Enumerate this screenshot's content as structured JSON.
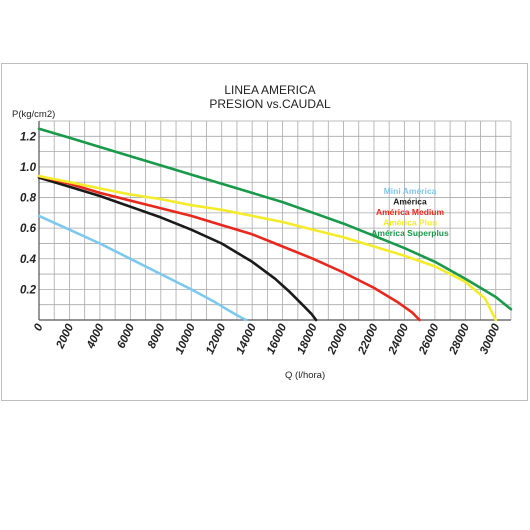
{
  "chart_data": {
    "type": "line",
    "title": "LINEA AMERICA",
    "subtitle": "PRESION vs.CAUDAL",
    "ylabel": "P(kg/cm2)",
    "xlabel": "Q (l/hora)",
    "xlim": [
      0,
      31000
    ],
    "ylim": [
      0,
      1.3
    ],
    "x_ticks": [
      "0",
      "2000",
      "4000",
      "6000",
      "8000",
      "10000",
      "12000",
      "14000",
      "16000",
      "18000",
      "20000",
      "22000",
      "24000",
      "26000",
      "28000",
      "30000"
    ],
    "y_ticks": [
      "0.2",
      "0.4",
      "0.6",
      "0.8",
      "1.0",
      "1.2"
    ],
    "grid": true,
    "legend_position": "right",
    "series": [
      {
        "name": "Mini América",
        "color": "#7cc8ee",
        "x": [
          0,
          2000,
          4000,
          6000,
          8000,
          10000,
          11500,
          12500,
          13200,
          13600
        ],
        "y": [
          0.68,
          0.59,
          0.5,
          0.4,
          0.3,
          0.2,
          0.12,
          0.06,
          0.02,
          0.0
        ]
      },
      {
        "name": "América",
        "color": "#1a1a1a",
        "x": [
          0,
          2000,
          4000,
          6000,
          8000,
          10000,
          12000,
          14000,
          15500,
          16500,
          17400,
          17900,
          18200
        ],
        "y": [
          0.93,
          0.87,
          0.81,
          0.74,
          0.67,
          0.59,
          0.5,
          0.38,
          0.27,
          0.18,
          0.09,
          0.04,
          0.0
        ]
      },
      {
        "name": "América Medium",
        "color": "#e8281c",
        "x": [
          0,
          2000,
          4000,
          6000,
          8000,
          10000,
          12000,
          14000,
          16000,
          18000,
          20000,
          22000,
          23500,
          24500,
          25000
        ],
        "y": [
          0.94,
          0.89,
          0.83,
          0.78,
          0.73,
          0.68,
          0.62,
          0.56,
          0.48,
          0.4,
          0.31,
          0.21,
          0.12,
          0.05,
          0.0
        ]
      },
      {
        "name": "América Plus",
        "color": "#f4ec2a",
        "x": [
          0,
          2000,
          4000,
          6000,
          8000,
          10000,
          12000,
          14000,
          16000,
          18000,
          20000,
          22000,
          24000,
          26000,
          28000,
          29300,
          30000
        ],
        "y": [
          0.94,
          0.9,
          0.86,
          0.82,
          0.79,
          0.75,
          0.72,
          0.68,
          0.64,
          0.59,
          0.54,
          0.48,
          0.42,
          0.35,
          0.25,
          0.14,
          0.0
        ]
      },
      {
        "name": "América Superplus",
        "color": "#189a4a",
        "x": [
          0,
          2000,
          4000,
          6000,
          8000,
          10000,
          12000,
          14000,
          16000,
          18000,
          20000,
          22000,
          24000,
          26000,
          28000,
          30000,
          31000
        ],
        "y": [
          1.25,
          1.19,
          1.13,
          1.07,
          1.01,
          0.95,
          0.89,
          0.83,
          0.77,
          0.7,
          0.63,
          0.55,
          0.47,
          0.38,
          0.27,
          0.15,
          0.07
        ]
      }
    ]
  }
}
